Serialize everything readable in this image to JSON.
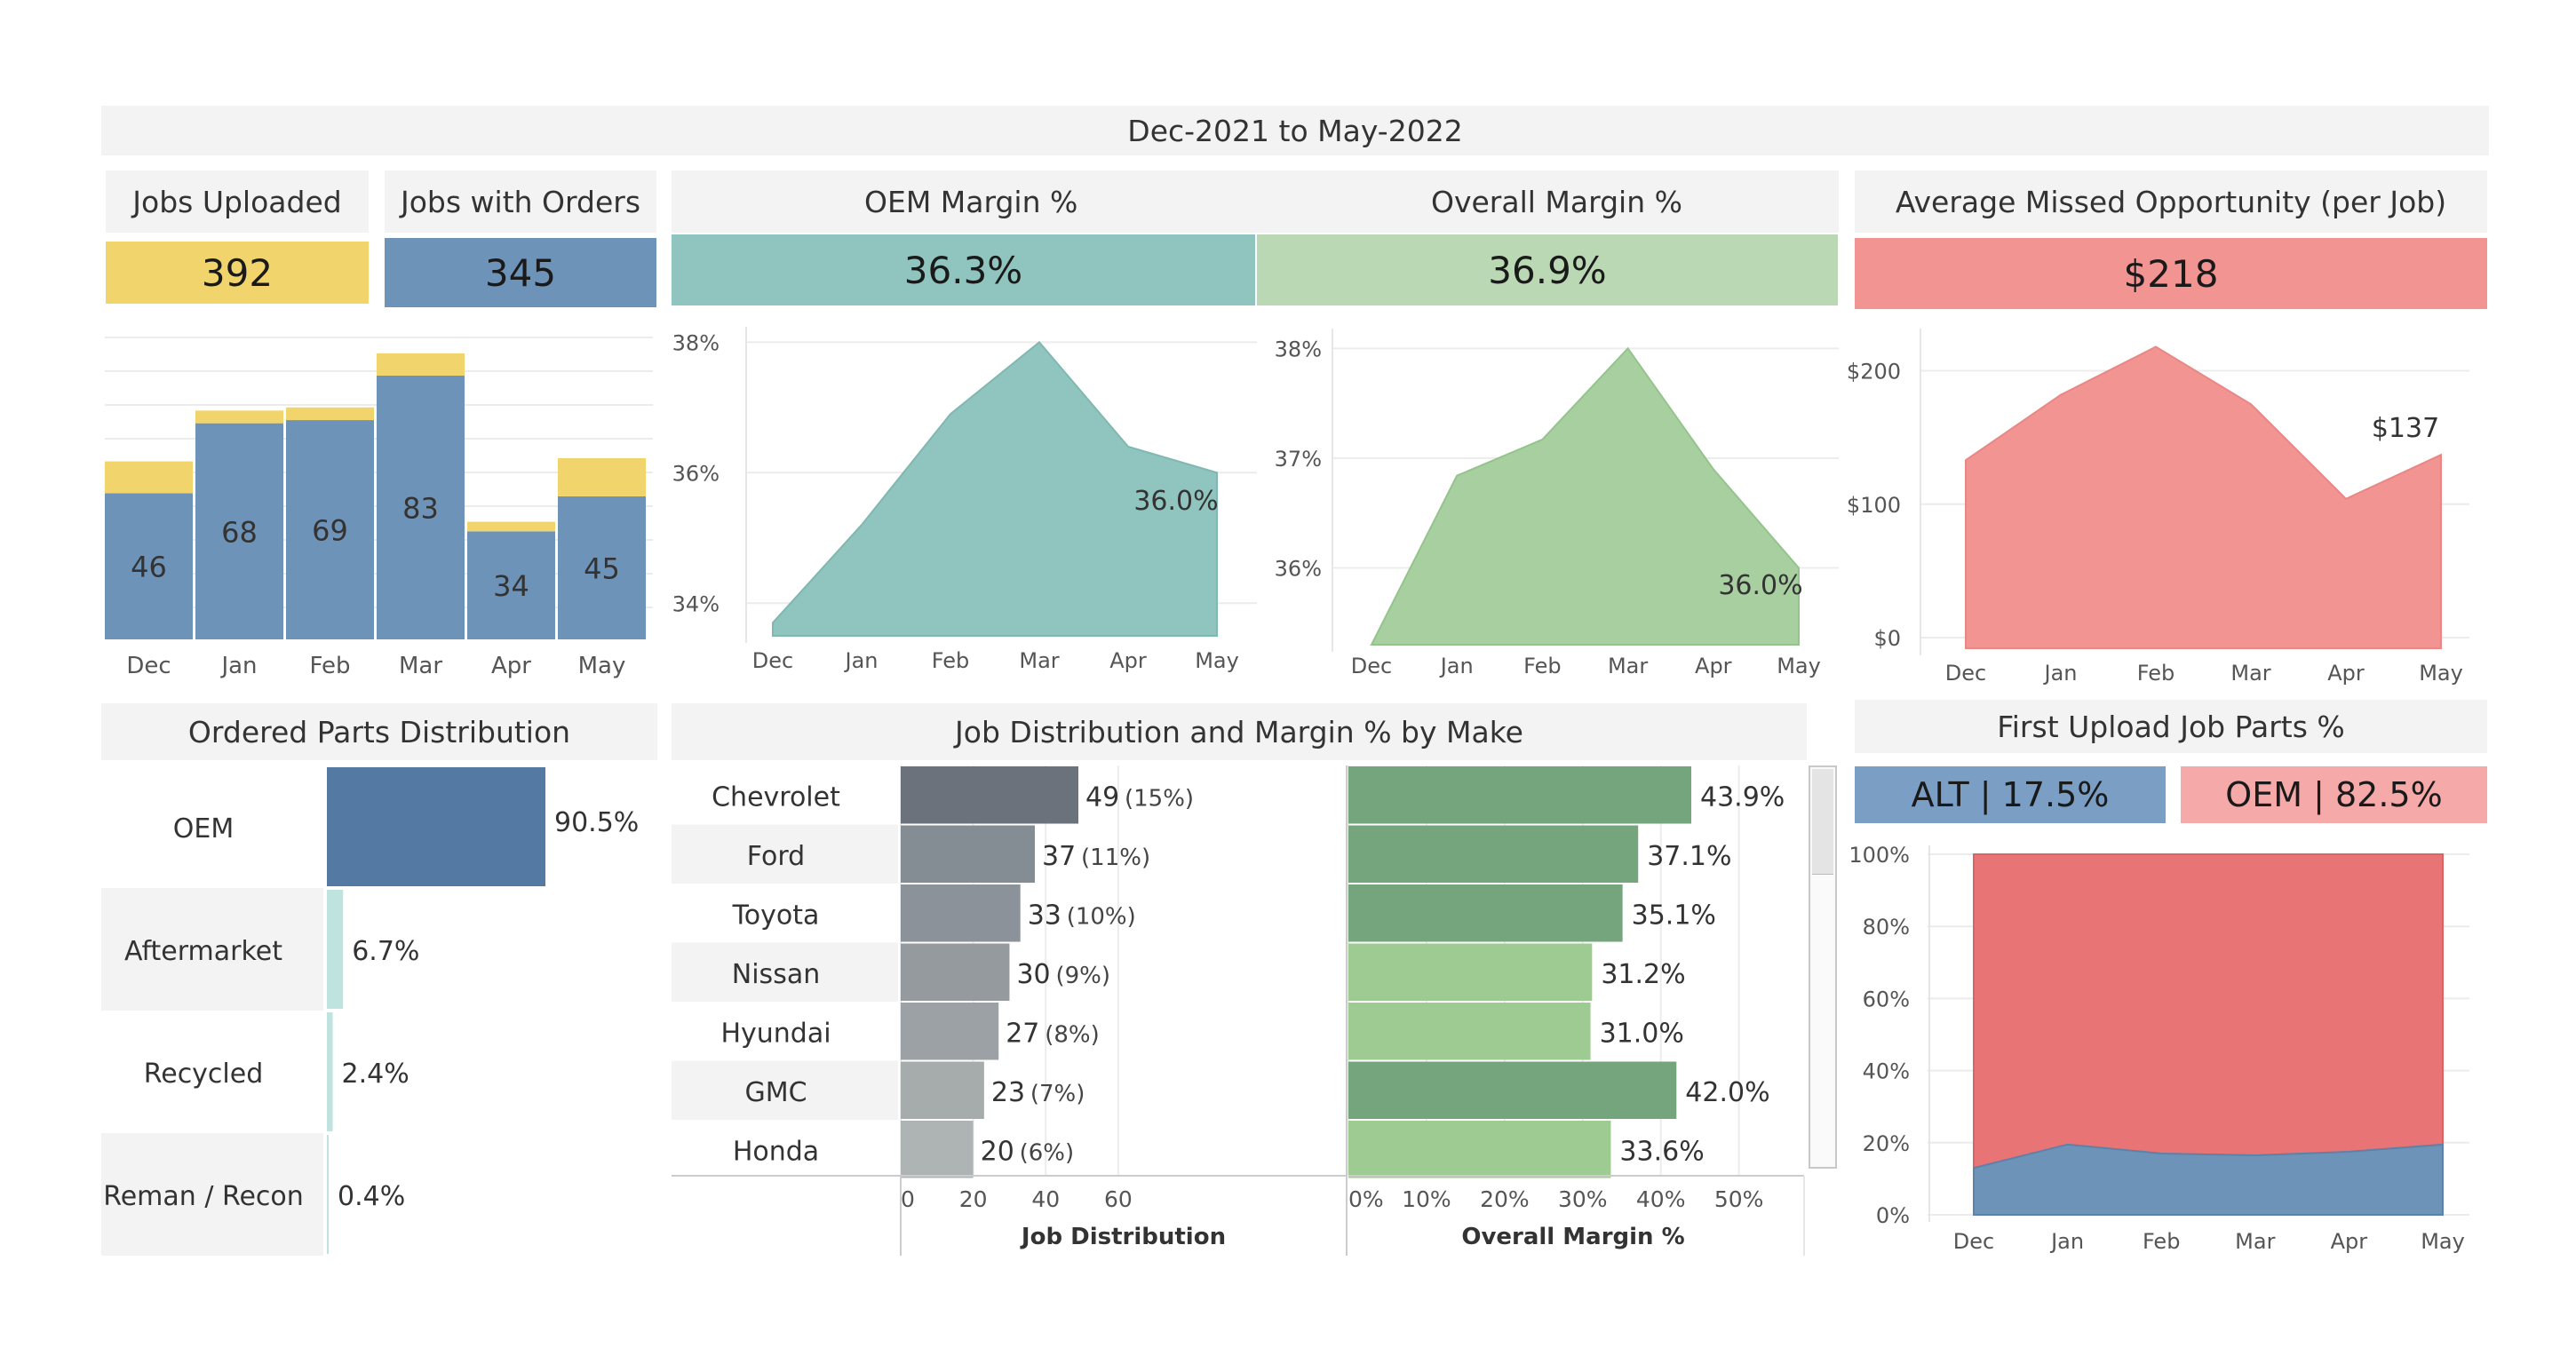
{
  "title": "Dec-2021 to May-2022",
  "colors": {
    "yellow": "#f1d46c",
    "blue": "#6e93b8",
    "teal": "#90c4be",
    "green": "#b9d8b3",
    "green_dark": "#a7cfa0",
    "red": "#f29492",
    "alt_blue": "#7b9ec4",
    "oem_pink": "#f5a9a8",
    "oem_bar": "#547aa3",
    "aftermarket": "#bfe3df"
  },
  "kpis": {
    "jobs_uploaded": {
      "label": "Jobs Uploaded",
      "value": "392"
    },
    "jobs_with_orders": {
      "label": "Jobs with Orders",
      "value": "345"
    },
    "oem_margin": {
      "label": "OEM Margin %",
      "value": "36.3%"
    },
    "overall_margin": {
      "label": "Overall Margin %",
      "value": "36.9%"
    },
    "missed_opportunity": {
      "label": "Average Missed Opportunity (per Job)",
      "value": "$218"
    }
  },
  "sections": {
    "ordered_parts": "Ordered Parts Distribution",
    "job_distribution": "Job Distribution and Margin % by Make",
    "first_upload": "First Upload Job Parts %"
  },
  "first_upload_badges": {
    "alt": "ALT | 17.5%",
    "oem": "OEM | 82.5%"
  },
  "chart_data": [
    {
      "id": "jobs",
      "type": "bar",
      "categories": [
        "Dec",
        "Jan",
        "Feb",
        "Mar",
        "Apr",
        "May"
      ],
      "series": [
        {
          "values": [
            46,
            68,
            69,
            83,
            34,
            45
          ]
        },
        {
          "values": [
            10,
            4,
            4,
            7,
            3,
            12
          ]
        }
      ],
      "ylim": [
        0,
        95
      ],
      "data_labels": [
        "46",
        "68",
        "69",
        "83",
        "34",
        "45"
      ]
    },
    {
      "id": "oem_margin",
      "type": "area",
      "x": [
        "Dec",
        "Jan",
        "Feb",
        "Mar",
        "Apr",
        "May"
      ],
      "values": [
        33.7,
        35.2,
        36.9,
        38.0,
        36.4,
        36.0
      ],
      "yticks": [
        "34%",
        "36%",
        "38%"
      ],
      "ylim": [
        33.5,
        38.1
      ],
      "annotation": "36.0%"
    },
    {
      "id": "overall_margin",
      "type": "area",
      "x": [
        "Dec",
        "Jan",
        "Feb",
        "Mar",
        "Apr",
        "May"
      ],
      "values": [
        35.3,
        36.84,
        37.17,
        38.0,
        36.9,
        36.0
      ],
      "yticks": [
        "36%",
        "37%",
        "38%"
      ],
      "ylim": [
        35.3,
        38.1
      ],
      "annotation": "36.0%"
    },
    {
      "id": "missed",
      "type": "area",
      "x": [
        "Dec",
        "Jan",
        "Feb",
        "Mar",
        "Apr",
        "May"
      ],
      "values": [
        133,
        182,
        218,
        175,
        104,
        137
      ],
      "yticks": [
        "$0",
        "$100",
        "$200"
      ],
      "ylim": [
        -8,
        225
      ],
      "annotation": "$137"
    },
    {
      "id": "parts",
      "type": "bar",
      "categories": [
        "OEM",
        "Aftermarket",
        "Recycled",
        "Reman / Recon"
      ],
      "values": [
        90.5,
        6.7,
        2.4,
        0.4
      ],
      "labels": [
        "90.5%",
        "6.7%",
        "2.4%",
        "0.4%"
      ]
    },
    {
      "id": "make",
      "type": "bar",
      "categories": [
        "Chevrolet",
        "Ford",
        "Toyota",
        "Nissan",
        "Hyundai",
        "GMC",
        "Honda"
      ],
      "series": [
        {
          "name": "Job Distribution",
          "values": [
            49,
            37,
            33,
            30,
            27,
            23,
            20
          ],
          "labels": [
            "49",
            "37",
            "33",
            "30",
            "27",
            "23",
            "20"
          ],
          "pct_labels": [
            "(15%)",
            "(11%)",
            "(10%)",
            "(9%)",
            "(8%)",
            "(7%)",
            "(6%)"
          ]
        },
        {
          "name": "Overall Margin %",
          "values": [
            43.9,
            37.1,
            35.1,
            31.2,
            31.0,
            42.0,
            33.6
          ],
          "labels": [
            "43.9%",
            "37.1%",
            "35.1%",
            "31.2%",
            "31.0%",
            "42.0%",
            "33.6%"
          ]
        }
      ],
      "xlabel_jobs": "Job Distribution",
      "xlabel_margin": "Overall Margin %",
      "xticks_jobs": [
        "0",
        "20",
        "40",
        "60"
      ],
      "xticks_margin": [
        "0%",
        "10%",
        "20%",
        "30%",
        "40%",
        "50%"
      ]
    },
    {
      "id": "first_upload",
      "type": "area",
      "x": [
        "Dec",
        "Jan",
        "Feb",
        "Mar",
        "Apr",
        "May"
      ],
      "series": [
        {
          "name": "ALT",
          "values": [
            13,
            19.5,
            17,
            16.5,
            17.5,
            19.5
          ]
        },
        {
          "name": "OEM",
          "values": [
            87,
            80.5,
            83,
            83.5,
            82.5,
            80.5
          ]
        }
      ],
      "yticks": [
        "0%",
        "20%",
        "40%",
        "60%",
        "80%",
        "100%"
      ],
      "ylim": [
        0,
        100
      ]
    }
  ]
}
